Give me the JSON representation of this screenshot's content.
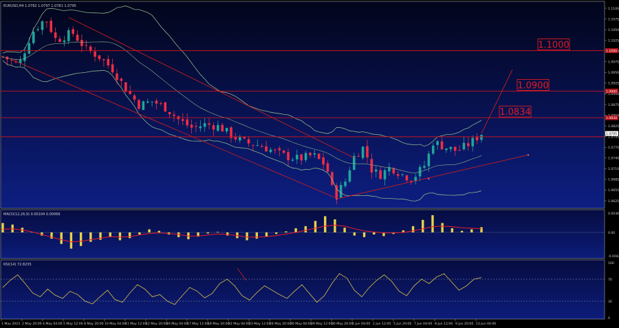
{
  "window": {
    "symbol_header": "EURUSD,H4 1.0782 1.0797 1.0781 1.0795"
  },
  "colors": {
    "background": "#000000",
    "panel_bg_top": "#02051a",
    "panel_bg_bottom": "#0c1c7a",
    "bull": "#1fa59a",
    "bear": "#ef2d44",
    "band": "#8db38a",
    "hline": "#c8141e",
    "level_label": "#e31b23",
    "channel": "#c81e1e",
    "macd_hist": "#e8d24a",
    "macd_signal": "#ee1c25",
    "rsi": "#c9b14a",
    "text": "#d0d0d0"
  },
  "price_axis": [
    "1.1100",
    "1.1075",
    "1.1050",
    "1.1025",
    "1.1000",
    "1.0975",
    "1.0950",
    "1.0925",
    "1.0900",
    "1.0875",
    "1.0850",
    "1.0825",
    "1.0795",
    "1.0770",
    "1.0740",
    "1.0710",
    "1.0685",
    "1.0655",
    "1.0625"
  ],
  "current_price_tag": "1.0795",
  "levels": [
    {
      "label": "1.1000",
      "value": 1.1,
      "axis_tag": "1.1000"
    },
    {
      "label": "1.0900",
      "value": 1.09,
      "axis_tag": "1.0900"
    },
    {
      "label": "1.0834",
      "value": 1.0834,
      "axis_tag": "1.0834"
    }
  ],
  "support_line_level": 1.0787,
  "time_axis": [
    "1 May 2023",
    "2 May 20:00",
    "4 May 04:00",
    "5 May 12:00",
    "8 May 20:00",
    "10 May 04:00",
    "11 May 12:00",
    "12 May 20:00",
    "16 May 04:00",
    "17 May 12:00",
    "18 May 20:00",
    "22 May 04:00",
    "23 May 12:00",
    "24 May 20:00",
    "26 May 04:00",
    "29 May 12:00",
    "30 May 20:00",
    "1 Jun 04:00",
    "2 Jun 12:00",
    "5 Jun 20:00",
    "7 Jun 04:00",
    "8 Jun 12:00",
    "9 Jun 20:00",
    "13 Jun 04:00"
  ],
  "macd": {
    "header": "MACD(12,26,9) 0.00104 0.00066",
    "axis": [
      "0.00365",
      "0.00",
      "-0.00425"
    ]
  },
  "rsi": {
    "header": "RSI(14) 72.8235",
    "axis": [
      "100",
      "70",
      "30",
      "0"
    ],
    "upper": 70,
    "lower": 30
  },
  "chart_data": {
    "type": "candlestick",
    "symbol": "EURUSD",
    "timeframe": "H4",
    "ylim": [
      1.0615,
      1.1115
    ],
    "level_lines": [
      1.1,
      1.09,
      1.0834,
      1.0787
    ],
    "close_path": [
      [
        0,
        1.0985
      ],
      [
        12,
        1.0965
      ],
      [
        22,
        1.1045
      ],
      [
        32,
        1.108
      ],
      [
        40,
        1.1025
      ],
      [
        52,
        1.1045
      ],
      [
        62,
        1.1005
      ],
      [
        72,
        1.0985
      ],
      [
        82,
        1.0955
      ],
      [
        92,
        1.0905
      ],
      [
        102,
        1.0865
      ],
      [
        112,
        1.0875
      ],
      [
        122,
        1.0858
      ],
      [
        132,
        1.0828
      ],
      [
        142,
        1.0808
      ],
      [
        152,
        1.0818
      ],
      [
        162,
        1.0812
      ],
      [
        172,
        1.0788
      ],
      [
        182,
        1.0772
      ],
      [
        192,
        1.0766
      ],
      [
        202,
        1.0752
      ],
      [
        212,
        1.0738
      ],
      [
        222,
        1.0732
      ],
      [
        232,
        1.0742
      ],
      [
        242,
        1.0715
      ],
      [
        248,
        1.0638
      ],
      [
        256,
        1.0675
      ],
      [
        262,
        1.0735
      ],
      [
        270,
        1.0762
      ],
      [
        276,
        1.0705
      ],
      [
        282,
        1.0692
      ],
      [
        290,
        1.0712
      ],
      [
        298,
        1.0695
      ],
      [
        306,
        1.0682
      ],
      [
        316,
        1.0718
      ],
      [
        322,
        1.0775
      ],
      [
        330,
        1.0762
      ],
      [
        340,
        1.0752
      ],
      [
        350,
        1.0772
      ],
      [
        358,
        1.0795
      ]
    ],
    "macd_hist": [
      0.0018,
      0.0015,
      0.0009,
      0.0001,
      -0.0006,
      -0.0012,
      -0.0022,
      -0.0031,
      -0.0026,
      -0.0018,
      -0.0014,
      -0.0009,
      -0.0015,
      -0.0011,
      -0.0004,
      0.0006,
      0.0003,
      -0.0004,
      -0.0009,
      -0.0013,
      -0.0008,
      -0.0002,
      0.0001,
      -0.0006,
      -0.0011,
      -0.0015,
      -0.0012,
      -0.0008,
      -0.0003,
      0.0002,
      0.0008,
      0.0012,
      0.0022,
      0.0031,
      0.0025,
      0.0009,
      -0.0006,
      -0.0009,
      -0.0004,
      -0.0007,
      -0.0003,
      0.0004,
      0.0012,
      0.0024,
      0.0033,
      0.0018,
      0.0008,
      0.0003,
      0.0006,
      0.001
    ],
    "macd_signal": [
      0.0006,
      0.0007,
      0.0005,
      0.0001,
      -0.0004,
      -0.0009,
      -0.0014,
      -0.0018,
      -0.0017,
      -0.0014,
      -0.0011,
      -0.0008,
      -0.0009,
      -0.0008,
      -0.0005,
      -0.0002,
      -0.0001,
      -0.0002,
      -0.0004,
      -0.0007,
      -0.0007,
      -0.0005,
      -0.0003,
      -0.0004,
      -0.0006,
      -0.0009,
      -0.0009,
      -0.0008,
      -0.0006,
      -0.0003,
      0.0,
      0.0004,
      0.0008,
      0.0012,
      0.0014,
      0.0012,
      0.0007,
      0.0003,
      0.0001,
      -0.0001,
      -0.0001,
      0.0,
      0.0003,
      0.0007,
      0.0011,
      0.0012,
      0.0011,
      0.0009,
      0.0008,
      0.0007
    ],
    "rsi": [
      55,
      68,
      78,
      62,
      45,
      38,
      52,
      41,
      35,
      48,
      42,
      30,
      25,
      38,
      50,
      33,
      28,
      45,
      60,
      52,
      38,
      42,
      30,
      24,
      40,
      55,
      48,
      36,
      44,
      62,
      70,
      58,
      40,
      32,
      46,
      58,
      50,
      42,
      35,
      48,
      60,
      44,
      28,
      40,
      62,
      80,
      72,
      50,
      38,
      55,
      68,
      78,
      66,
      48,
      40,
      58,
      70,
      62,
      74,
      80,
      65,
      50,
      58,
      70,
      73
    ]
  }
}
